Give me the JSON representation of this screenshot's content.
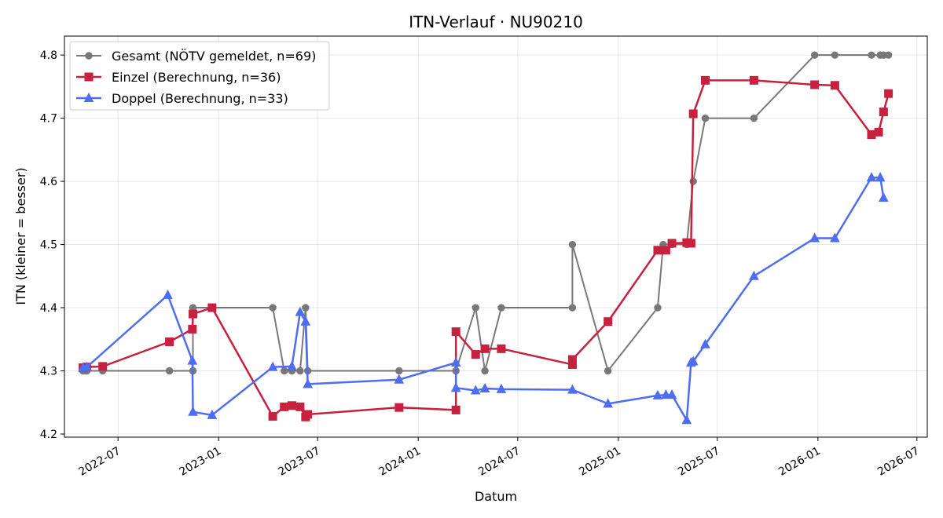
{
  "chart_data": {
    "type": "line",
    "title": "ITN-Verlauf · NU90210",
    "xlabel": "Datum",
    "ylabel": "ITN  (kleiner = besser)",
    "x_type": "date",
    "xlim": [
      "2022-03-25",
      "2026-07-20"
    ],
    "ylim": [
      4.195,
      4.83
    ],
    "x_ticks": [
      "2022-07-01",
      "2023-01-01",
      "2023-07-01",
      "2024-01-01",
      "2024-07-01",
      "2025-01-01",
      "2025-07-01",
      "2026-01-01",
      "2026-07-01"
    ],
    "x_tick_labels": [
      "2022-07",
      "2023-01",
      "2023-07",
      "2024-01",
      "2024-07",
      "2025-01",
      "2025-07",
      "2026-01",
      "2026-07"
    ],
    "y_ticks": [
      4.2,
      4.3,
      4.4,
      4.5,
      4.6,
      4.7,
      4.8
    ],
    "y_tick_labels": [
      "4.2",
      "4.3",
      "4.4",
      "4.5",
      "4.6",
      "4.7",
      "4.8"
    ],
    "grid": true,
    "legend_position": "top-left",
    "series": [
      {
        "name": "Gesamt (NÖTV gemeldet, n=69)",
        "color": "#4d4d4d",
        "marker": "circle",
        "points": [
          [
            "2022-04-28",
            4.3
          ],
          [
            "2022-05-03",
            4.3
          ],
          [
            "2022-05-05",
            4.3
          ],
          [
            "2022-06-03",
            4.3
          ],
          [
            "2022-10-03",
            4.3
          ],
          [
            "2022-11-15",
            4.3
          ],
          [
            "2022-11-15",
            4.4
          ],
          [
            "2023-04-10",
            4.4
          ],
          [
            "2023-05-01",
            4.3
          ],
          [
            "2023-05-15",
            4.3
          ],
          [
            "2023-05-30",
            4.3
          ],
          [
            "2023-06-09",
            4.4
          ],
          [
            "2023-06-13",
            4.3
          ],
          [
            "2023-11-27",
            4.3
          ],
          [
            "2024-03-10",
            4.3
          ],
          [
            "2024-04-15",
            4.4
          ],
          [
            "2024-05-02",
            4.3
          ],
          [
            "2024-06-01",
            4.4
          ],
          [
            "2024-10-09",
            4.4
          ],
          [
            "2024-10-09",
            4.5
          ],
          [
            "2024-12-13",
            4.3
          ],
          [
            "2025-03-14",
            4.4
          ],
          [
            "2025-03-24",
            4.5
          ],
          [
            "2025-04-09",
            4.5
          ],
          [
            "2025-05-06",
            4.5
          ],
          [
            "2025-05-18",
            4.6
          ],
          [
            "2025-06-09",
            4.7
          ],
          [
            "2025-09-06",
            4.7
          ],
          [
            "2025-12-26",
            4.8
          ],
          [
            "2026-02-01",
            4.8
          ],
          [
            "2026-04-09",
            4.8
          ],
          [
            "2026-04-25",
            4.8
          ],
          [
            "2026-05-01",
            4.8
          ],
          [
            "2026-05-10",
            4.8
          ]
        ]
      },
      {
        "name": "Einzel (Berechnung, n=36)",
        "color": "#c8203f",
        "marker": "square",
        "points": [
          [
            "2022-04-28",
            4.305
          ],
          [
            "2022-05-05",
            4.306
          ],
          [
            "2022-06-03",
            4.307
          ],
          [
            "2022-10-03",
            4.346
          ],
          [
            "2022-11-14",
            4.366
          ],
          [
            "2022-11-15",
            4.39
          ],
          [
            "2022-12-20",
            4.4
          ],
          [
            "2023-04-10",
            4.228
          ],
          [
            "2023-05-01",
            4.243
          ],
          [
            "2023-05-15",
            4.245
          ],
          [
            "2023-05-30",
            4.243
          ],
          [
            "2023-06-09",
            4.227
          ],
          [
            "2023-06-13",
            4.231
          ],
          [
            "2023-11-27",
            4.242
          ],
          [
            "2024-03-10",
            4.238
          ],
          [
            "2024-03-10",
            4.362
          ],
          [
            "2024-04-15",
            4.326
          ],
          [
            "2024-05-02",
            4.335
          ],
          [
            "2024-06-01",
            4.335
          ],
          [
            "2024-10-09",
            4.31
          ],
          [
            "2024-10-09",
            4.318
          ],
          [
            "2024-12-13",
            4.378
          ],
          [
            "2025-03-14",
            4.491
          ],
          [
            "2025-03-29",
            4.491
          ],
          [
            "2025-04-09",
            4.502
          ],
          [
            "2025-05-06",
            4.503
          ],
          [
            "2025-05-14",
            4.502
          ],
          [
            "2025-05-18",
            4.707
          ],
          [
            "2025-06-09",
            4.76
          ],
          [
            "2025-09-06",
            4.76
          ],
          [
            "2025-12-26",
            4.753
          ],
          [
            "2026-02-01",
            4.752
          ],
          [
            "2026-04-09",
            4.674
          ],
          [
            "2026-04-22",
            4.678
          ],
          [
            "2026-05-01",
            4.71
          ],
          [
            "2026-05-10",
            4.739
          ]
        ]
      },
      {
        "name": "Doppel (Berechnung, n=33)",
        "color": "#4f6df0",
        "marker": "triangle",
        "points": [
          [
            "2022-04-28",
            4.305
          ],
          [
            "2022-05-05",
            4.306
          ],
          [
            "2022-09-30",
            4.42
          ],
          [
            "2022-11-14",
            4.316
          ],
          [
            "2022-11-15",
            4.235
          ],
          [
            "2022-12-20",
            4.23
          ],
          [
            "2023-04-10",
            4.306
          ],
          [
            "2023-05-15",
            4.307
          ],
          [
            "2023-05-30",
            4.393
          ],
          [
            "2023-06-09",
            4.378
          ],
          [
            "2023-06-13",
            4.279
          ],
          [
            "2023-11-27",
            4.286
          ],
          [
            "2024-03-10",
            4.313
          ],
          [
            "2024-03-10",
            4.273
          ],
          [
            "2024-04-15",
            4.269
          ],
          [
            "2024-05-02",
            4.272
          ],
          [
            "2024-06-01",
            4.271
          ],
          [
            "2024-10-09",
            4.27
          ],
          [
            "2024-12-13",
            4.248
          ],
          [
            "2025-03-14",
            4.261
          ],
          [
            "2025-03-29",
            4.262
          ],
          [
            "2025-04-09",
            4.262
          ],
          [
            "2025-05-06",
            4.222
          ],
          [
            "2025-05-14",
            4.313
          ],
          [
            "2025-05-18",
            4.315
          ],
          [
            "2025-06-09",
            4.342
          ],
          [
            "2025-09-06",
            4.45
          ],
          [
            "2025-12-26",
            4.51
          ],
          [
            "2026-02-01",
            4.51
          ],
          [
            "2026-04-09",
            4.606
          ],
          [
            "2026-04-25",
            4.606
          ],
          [
            "2026-05-01",
            4.574
          ]
        ]
      }
    ]
  }
}
